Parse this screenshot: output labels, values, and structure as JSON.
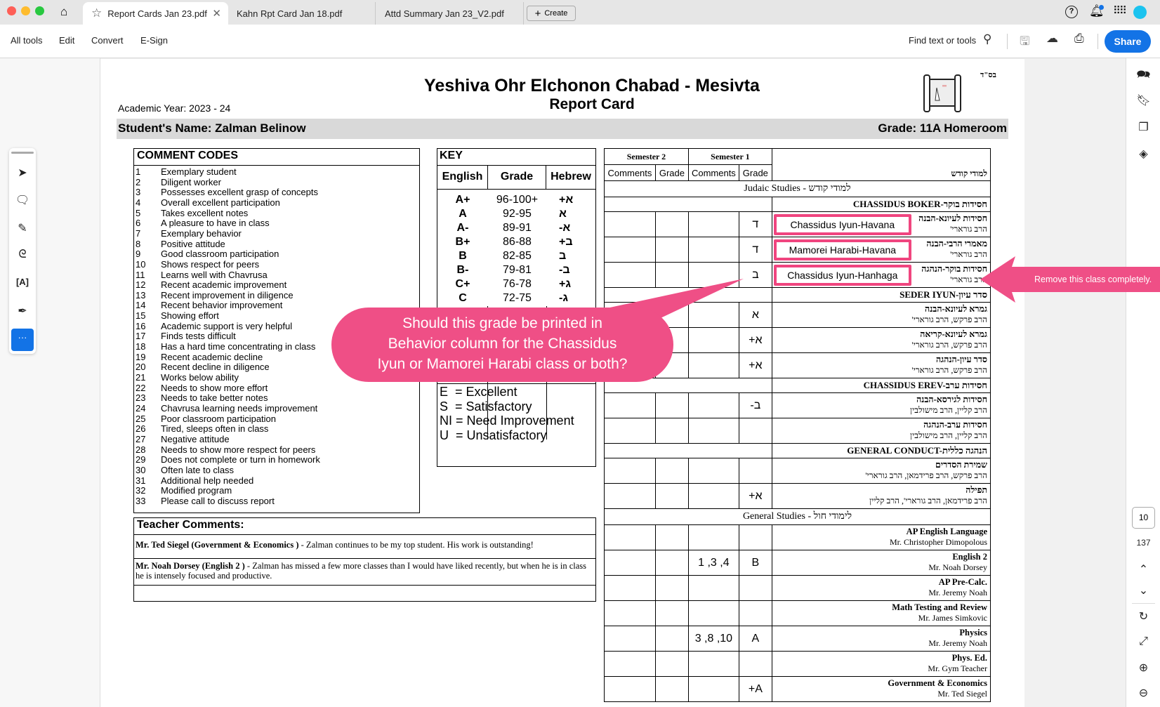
{
  "window": {
    "tabs": [
      {
        "label": "Report Cards Jan 23.pdf",
        "active": true
      },
      {
        "label": "Kahn Rpt Card Jan 18.pdf"
      },
      {
        "label": "Attd Summary Jan 23_V2.pdf"
      }
    ],
    "create_label": "Create"
  },
  "toolbar": {
    "menus": [
      "All tools",
      "Edit",
      "Convert",
      "E-Sign"
    ],
    "find_label": "Find text or tools",
    "share_label": "Share"
  },
  "page_nav": {
    "current_page": "10",
    "total_pages": "137"
  },
  "doc": {
    "bsd": "בס\"ד",
    "title": "Yeshiva Ohr Elchonon Chabad - Mesivta",
    "subtitle": "Report Card",
    "academic_year": "Academic Year: 2023 - 24",
    "student_name": "Student's Name: Zalman Belinow",
    "grade": "Grade: 11A Homeroom",
    "comment_codes_title": "COMMENT CODES",
    "comment_codes": [
      "Exemplary student",
      "Diligent worker",
      "Possesses excellent grasp of concepts",
      "Overall excellent participation",
      "Takes excellent notes",
      "A pleasure to have in class",
      "Exemplary behavior",
      "Positive attitude",
      "Good classroom participation",
      "Shows respect for peers",
      "Learns well with Chavrusa",
      "Recent academic improvement",
      "Recent improvement in diligence",
      "Recent behavior improvement",
      "Showing effort",
      "Academic support is very helpful",
      "Finds tests difficult",
      "Has a hard time concentrating in class",
      "Recent academic decline",
      "Recent decline in diligence",
      "Works below ability",
      "Needs to show more effort",
      "Needs to take better notes",
      "Chavrusa learning needs improvement",
      "Poor classroom participation",
      "Tired, sleeps often in class",
      "Negative attitude",
      "Needs to show more respect for peers",
      "Does not complete or turn in homework",
      "Often late to class",
      "Additional help needed",
      "Modified program",
      "Please call to discuss report"
    ],
    "key": {
      "title": "KEY",
      "headers": [
        "English",
        "Grade",
        "Hebrew"
      ],
      "rows": [
        [
          "A+",
          "96-100+",
          "א+"
        ],
        [
          "A",
          "92-95",
          "א"
        ],
        [
          "A-",
          "89-91",
          "א-"
        ],
        [
          "B+",
          "86-88",
          "ב+"
        ],
        [
          "B",
          "82-85",
          "ב"
        ],
        [
          "B-",
          "79-81",
          "ב-"
        ],
        [
          "C+",
          "76-78",
          "ג+"
        ],
        [
          "C",
          "72-75",
          "ג-"
        ]
      ],
      "behavior": [
        "E  = Excellent",
        "S  = Satisfactory",
        "NI = Need Improvement",
        "U  = Unsatisfactory"
      ]
    },
    "teacher_comments": {
      "title": "Teacher Comments:",
      "items": [
        {
          "teacher": "Mr. Ted Siegel (Government & Economics )",
          "text": " - Zalman continues to be my top student. His work is outstanding!"
        },
        {
          "teacher": "Mr. Noah Dorsey (English 2 )",
          "text": " - Zalman has missed a few more classes than I would have liked recently, but when he is in class he is intensely focused and productive."
        }
      ]
    },
    "grades_table": {
      "semester2": "Semester 2",
      "semester1": "Semester 1",
      "comments": "Comments",
      "grade": "Grade",
      "hebrew_heading": "למודי קודש",
      "rows": [
        {
          "type": "band",
          "text": "Judaic Studies - למודי קודש"
        },
        {
          "type": "section",
          "text": "CHASSIDUS BOKER-חסידות בוקר"
        },
        {
          "type": "subject",
          "name": "חסידות לעיונא-הבנה",
          "teacher": "הרב גורארי'",
          "s1_grade": "ד",
          "highlight": "Chassidus Iyun-Havana"
        },
        {
          "type": "subject",
          "name": "מאמרי הרבי-הבנה",
          "teacher": "הרב גורארי'",
          "s1_grade": "ד",
          "highlight": "Mamorei Harabi-Havana"
        },
        {
          "type": "subject",
          "name": "חסידות בוקר-הנהגה",
          "teacher": "הרב גורארי'",
          "s1_grade": "ב",
          "highlight": "Chassidus Iyun-Hanhaga"
        },
        {
          "type": "section",
          "text": "SEDER IYUN-סדר עיון"
        },
        {
          "type": "subject",
          "name": "גמרא לעיונא-הבנה",
          "teacher": "הרב פרקש, הרב גורארי'",
          "s1_grade": "א"
        },
        {
          "type": "subject",
          "name": "גמרא לעיונא-קריאה",
          "teacher": "הרב פרקש, הרב גורארי'",
          "s1_grade": "א+"
        },
        {
          "type": "subject",
          "name": "סדר עיון-הנהגה",
          "teacher": "הרב פרקש, הרב גורארי'",
          "s1_grade": "א+"
        },
        {
          "type": "section",
          "text": "CHASSIDUS EREV-חסידות ערב"
        },
        {
          "type": "subject",
          "name": "חסידות לגירסא-הבנה",
          "teacher": "הרב קליין, הרב מישולבין",
          "s1_grade": "ב-"
        },
        {
          "type": "subject",
          "name": "חסידות ערב-הנהגה",
          "teacher": "הרב קליין, הרב מישולבין",
          "s1_grade": ""
        },
        {
          "type": "section",
          "text": "GENERAL CONDUCT-הנהגה כללית"
        },
        {
          "type": "subject",
          "name": "שמירת הסדרים",
          "teacher": "הרב פרקש, הרב פרידמאן, הרב גורארי'",
          "s1_grade": ""
        },
        {
          "type": "subject",
          "name": "תפילה",
          "teacher": "הרב פרידמאן, הרב גורארי', הרב קליין",
          "s1_grade": "א+"
        },
        {
          "type": "band",
          "text": "General Studies - לימודי חול"
        },
        {
          "type": "subject",
          "ltr": true,
          "name": "AP English Language",
          "teacher": "Mr. Christopher Dimopolous",
          "s1_grade": ""
        },
        {
          "type": "subject",
          "ltr": true,
          "name": "English 2",
          "teacher": "Mr. Noah Dorsey",
          "s1_comments": "1 ,3 ,4",
          "s1_grade": "B"
        },
        {
          "type": "subject",
          "ltr": true,
          "name": "AP Pre-Calc.",
          "teacher": "Mr. Jeremy Noah",
          "s1_grade": ""
        },
        {
          "type": "subject",
          "ltr": true,
          "name": "Math Testing and Review",
          "teacher": "Mr. James Simkovic",
          "s1_grade": ""
        },
        {
          "type": "subject",
          "ltr": true,
          "name": "Physics",
          "teacher": "Mr. Jeremy Noah",
          "s1_comments": "3 ,8 ,10",
          "s1_grade": "A"
        },
        {
          "type": "subject",
          "ltr": true,
          "name": "Phys. Ed.",
          "teacher": "Mr. Gym Teacher",
          "s1_grade": ""
        },
        {
          "type": "subject",
          "ltr": true,
          "name": "Government & Economics",
          "teacher": "Mr. Ted Siegel",
          "s1_grade": "A+"
        }
      ]
    }
  },
  "annotations": {
    "callout": [
      "Should this grade be printed in",
      "Behavior column for the Chassidus",
      "Iyun or Mamorei Harabi class or both?"
    ],
    "arrow_note": "Remove this class completely.",
    "color": "#ef4f86",
    "highlight_color": "#f0457f"
  }
}
